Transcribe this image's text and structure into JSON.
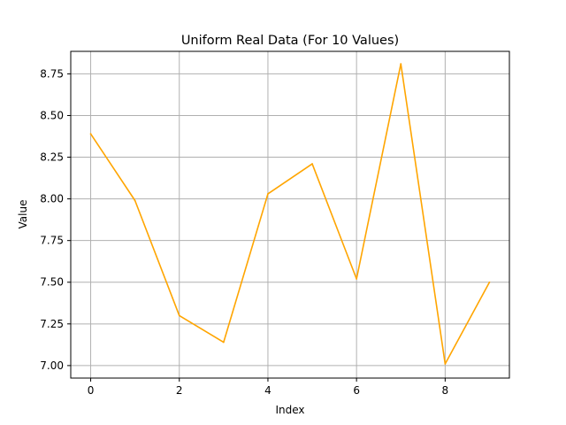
{
  "chart_data": {
    "type": "line",
    "title": "Uniform Real Data (For 10 Values)",
    "xlabel": "Index",
    "ylabel": "Value",
    "x": [
      0,
      1,
      2,
      3,
      4,
      5,
      6,
      7,
      8,
      9
    ],
    "series": [
      {
        "values": [
          8.39,
          7.99,
          7.3,
          7.14,
          8.03,
          8.21,
          7.52,
          8.81,
          7.01,
          7.5
        ],
        "color": "#FFA500"
      }
    ],
    "xlim": [
      -0.45,
      9.45
    ],
    "ylim": [
      6.925,
      8.885
    ],
    "xticks": [
      0,
      2,
      4,
      6,
      8
    ],
    "yticks": [
      7.0,
      7.25,
      7.5,
      7.75,
      8.0,
      8.25,
      8.5,
      8.75
    ],
    "ytick_labels": [
      "7.00",
      "7.25",
      "7.50",
      "7.75",
      "8.00",
      "8.25",
      "8.50",
      "8.75"
    ],
    "grid": true,
    "grid_color": "#b0b0b0"
  }
}
